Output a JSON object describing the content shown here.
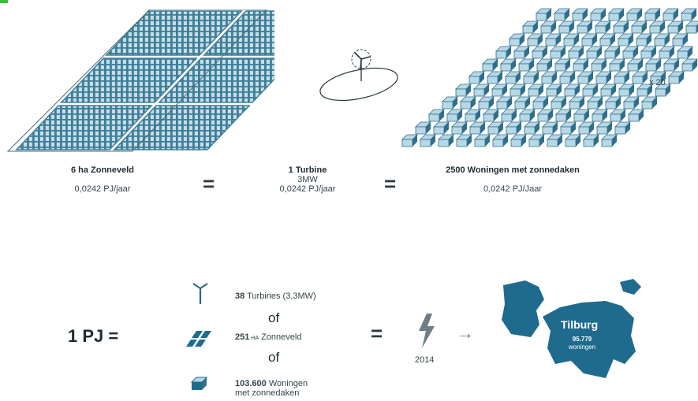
{
  "colors": {
    "panel": "#3d7e9a",
    "panel_line": "#b9d4e0",
    "house_light": "#b8d8e6",
    "house_dark": "#2f6f8c",
    "city": "#1f6b8d",
    "text": "#2b3a40",
    "accent_green": "#3dbb3a"
  },
  "top": {
    "solar": {
      "title": "6 ha Zonneveld",
      "value": "0,0242 PJ/jaar",
      "icon": "solar-field"
    },
    "turbine": {
      "title": "1 Turbine",
      "power": "3MW",
      "value": "0,0242 PJ/jaar",
      "icon": "wind-turbine"
    },
    "houses": {
      "title": "2500 Woningen met zonnedaken",
      "value": "0,0242 PJ/Jaar",
      "multiplier": "x 20",
      "icon": "houses-grid"
    },
    "equals": [
      "=",
      "="
    ]
  },
  "bottom": {
    "lhs": "1 PJ =",
    "options": [
      {
        "bold": "38",
        "text": " Turbines (3,3MW)",
        "icon": "wind-turbine"
      },
      {
        "bold": "251",
        "small": " HA",
        "text": " Zonneveld",
        "icon": "solar-panel"
      },
      {
        "bold": "103.600",
        "text": " Woningen",
        "text2": "met zonnedaken",
        "icon": "house"
      }
    ],
    "or": [
      "of",
      "of"
    ],
    "equals": "=",
    "year": "2014",
    "arrow": "→",
    "city": {
      "name": "Tilburg",
      "count": "95.779",
      "unit": "woningen"
    }
  }
}
